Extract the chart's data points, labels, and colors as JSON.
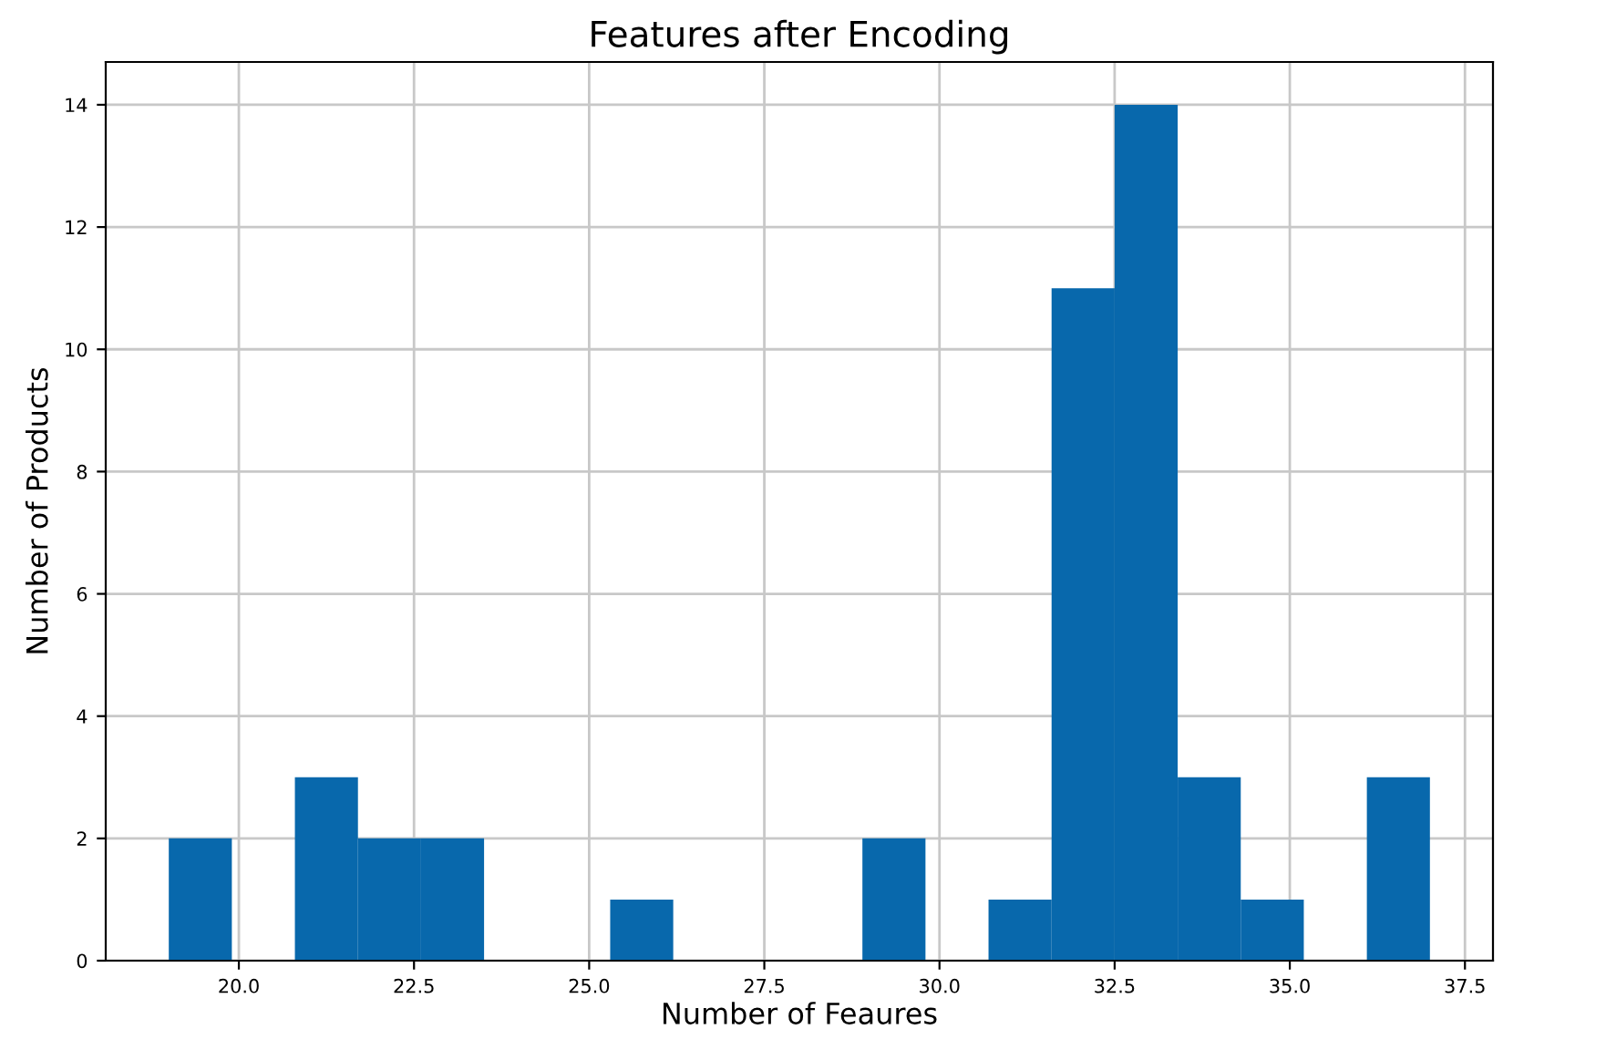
{
  "chart_data": {
    "type": "histogram",
    "title": "Features after Encoding",
    "xlabel": "Number of Feaures",
    "ylabel": "Number of Products",
    "bins": [
      19,
      19.9,
      20.8,
      21.7,
      22.6,
      23.5,
      24.4,
      25.3,
      26.2,
      27.1,
      28,
      28.9,
      29.8,
      30.7,
      31.6,
      32.5,
      33.4,
      34.3,
      35.2,
      36.1,
      37
    ],
    "values": [
      2,
      0,
      3,
      2,
      2,
      0,
      0,
      1,
      0,
      0,
      0,
      2,
      0,
      1,
      11,
      14,
      3,
      1,
      0,
      3
    ],
    "color": "#0868ac",
    "xlim": [
      18.1,
      37.9
    ],
    "xticks": [
      {
        "value": 20,
        "label": "20.0"
      },
      {
        "value": 22.5,
        "label": "22.5"
      },
      {
        "value": 25,
        "label": "25.0"
      },
      {
        "value": 27.5,
        "label": "27.5"
      },
      {
        "value": 30,
        "label": "30.0"
      },
      {
        "value": 32.5,
        "label": "32.5"
      },
      {
        "value": 35,
        "label": "35.0"
      },
      {
        "value": 37.5,
        "label": "37.5"
      }
    ],
    "ylim": [
      0,
      14.7
    ],
    "yticks": [
      0,
      2,
      4,
      6,
      8,
      10,
      12,
      14
    ],
    "grid": true
  }
}
